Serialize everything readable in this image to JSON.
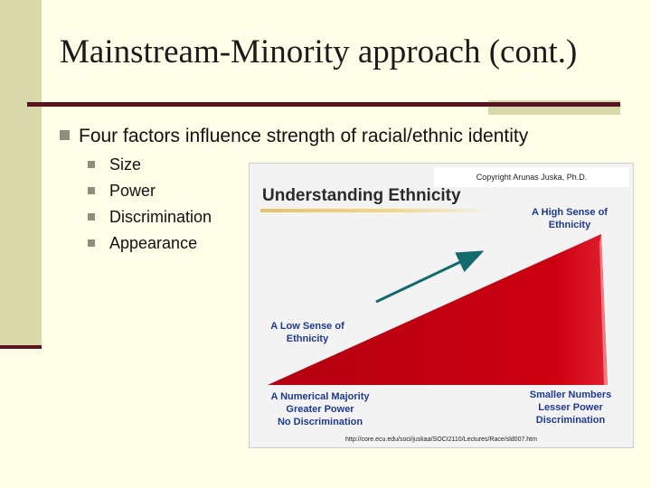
{
  "slide": {
    "title": "Mainstream-Minority approach (cont.)",
    "main_bullet": "Four factors influence strength of racial/ethnic identity",
    "sub_bullets": [
      "Size",
      "Power",
      "Discrimination",
      "Appearance"
    ]
  },
  "figure": {
    "copyright": "Copyright Arunas Juska, Ph.D.",
    "title": "Understanding Ethnicity",
    "high_label": [
      "A High Sense of",
      "Ethnicity"
    ],
    "low_label": [
      "A Low Sense of",
      "Ethnicity"
    ],
    "majority_label": [
      "A Numerical Majority",
      "Greater Power",
      "No Discrimination"
    ],
    "smaller_label": [
      "Smaller Numbers",
      "Lesser Power",
      "Discrimination"
    ],
    "url": "http://core.ecu.edu/soci/juskaa/SOCI2110/Lectures/Race/sld007.htm",
    "colors": {
      "wedge": "#cc0011",
      "arrow": "#136b6b",
      "label": "#1f3a8a"
    }
  }
}
